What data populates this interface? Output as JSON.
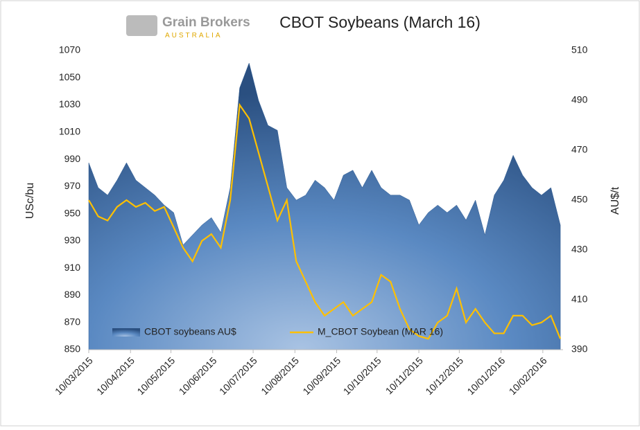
{
  "chart_data": {
    "type": "area-line",
    "title": "CBOT Soybeans (March 16)",
    "logo": {
      "name": "Grain Brokers",
      "country": "AUSTRALIA"
    },
    "ylabel": "USc/bu",
    "y2label": "AU$/t",
    "x": [
      "10/03/2015",
      "17/03/2015",
      "24/03/2015",
      "31/03/2015",
      "07/04/2015",
      "14/04/2015",
      "21/04/2015",
      "28/04/2015",
      "05/05/2015",
      "12/05/2015",
      "19/05/2015",
      "26/05/2015",
      "02/06/2015",
      "09/06/2015",
      "16/06/2015",
      "23/06/2015",
      "30/06/2015",
      "07/07/2015",
      "14/07/2015",
      "21/07/2015",
      "28/07/2015",
      "04/08/2015",
      "11/08/2015",
      "18/08/2015",
      "25/08/2015",
      "01/09/2015",
      "08/09/2015",
      "15/09/2015",
      "22/09/2015",
      "29/09/2015",
      "06/10/2015",
      "13/10/2015",
      "20/10/2015",
      "27/10/2015",
      "03/11/2015",
      "10/11/2015",
      "17/11/2015",
      "24/11/2015",
      "01/12/2015",
      "08/12/2015",
      "15/12/2015",
      "22/12/2015",
      "29/12/2015",
      "05/01/2016",
      "12/01/2016",
      "19/01/2016",
      "26/01/2016",
      "02/02/2016",
      "09/02/2016",
      "16/02/2016",
      "23/02/2016"
    ],
    "series": [
      {
        "name": "CBOT soybeans AU$",
        "kind": "area",
        "axis": "y2",
        "color": "#2f5c93",
        "values": [
          465,
          455,
          452,
          458,
          465,
          458,
          455,
          452,
          448,
          445,
          432,
          436,
          440,
          443,
          437,
          455,
          495,
          505,
          490,
          480,
          478,
          455,
          450,
          452,
          458,
          455,
          450,
          460,
          462,
          455,
          462,
          455,
          452,
          452,
          450,
          440,
          445,
          448,
          445,
          448,
          442,
          450,
          436,
          452,
          458,
          468,
          460,
          455,
          452,
          455,
          440
        ]
      },
      {
        "name": "M_CBOT Soybean (MAR 16)",
        "kind": "line",
        "axis": "y",
        "color": "#ffc000",
        "values": [
          960,
          948,
          945,
          955,
          960,
          955,
          958,
          952,
          955,
          940,
          925,
          915,
          930,
          935,
          925,
          960,
          1030,
          1020,
          995,
          970,
          945,
          960,
          915,
          900,
          885,
          875,
          880,
          885,
          875,
          880,
          885,
          905,
          900,
          880,
          865,
          860,
          858,
          870,
          875,
          895,
          870,
          880,
          870,
          862,
          862,
          875,
          875,
          868,
          870,
          875,
          858
        ]
      }
    ],
    "xlim": [
      "10/03/2015",
      "25/02/2016"
    ],
    "xticks": [
      "10/03/2015",
      "10/04/2015",
      "10/05/2015",
      "10/06/2015",
      "10/07/2015",
      "10/08/2015",
      "10/09/2015",
      "10/10/2015",
      "10/11/2015",
      "10/12/2015",
      "10/01/2016",
      "10/02/2016"
    ],
    "ylim": [
      850,
      1070
    ],
    "yticks": [
      850,
      870,
      890,
      910,
      930,
      950,
      970,
      990,
      1010,
      1030,
      1050,
      1070
    ],
    "y2lim": [
      390,
      510
    ],
    "y2ticks": [
      390,
      410,
      430,
      450,
      470,
      490,
      510
    ]
  }
}
